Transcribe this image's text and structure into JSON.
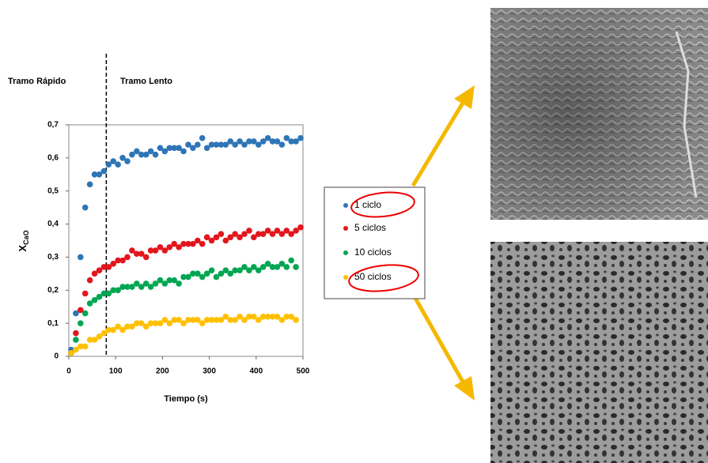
{
  "chart_data": {
    "type": "scatter",
    "annotations": [
      "Tramo Rápido",
      "Tramo Lento"
    ],
    "divider_x": 80,
    "ylabel": "X",
    "ylabel_subscript": "CaO",
    "xlabel": "Tiempo (s)",
    "xlim": [
      0,
      500
    ],
    "xticks": [
      0,
      100,
      200,
      300,
      400,
      500
    ],
    "ylim": [
      0,
      0.7
    ],
    "yticks": [
      0,
      {
        "value": 0.1,
        "label": "0,1"
      },
      {
        "value": 0.2,
        "label": "0,2"
      },
      {
        "value": 0.3,
        "label": "0,3"
      },
      {
        "value": 0.4,
        "label": "0,4"
      },
      {
        "value": 0.5,
        "label": "0,5"
      },
      {
        "value": 0.6,
        "label": "0,6"
      },
      {
        "value": 0.7,
        "label": "0,7"
      }
    ],
    "x": [
      5,
      15,
      25,
      35,
      45,
      55,
      65,
      75,
      85,
      95,
      105,
      115,
      125,
      135,
      145,
      155,
      165,
      175,
      185,
      195,
      205,
      215,
      225,
      235,
      245,
      255,
      265,
      275,
      285,
      295,
      305,
      315,
      325,
      335,
      345,
      355,
      365,
      375,
      385,
      395,
      405,
      415,
      425,
      435,
      445,
      455,
      465,
      475,
      485,
      495
    ],
    "series": [
      {
        "name": "1 ciclo",
        "color": "#2e75b6",
        "values": [
          0.02,
          0.13,
          0.3,
          0.45,
          0.52,
          0.55,
          0.55,
          0.56,
          0.58,
          0.59,
          0.58,
          0.6,
          0.59,
          0.61,
          0.62,
          0.61,
          0.61,
          0.62,
          0.61,
          0.63,
          0.62,
          0.63,
          0.63,
          0.63,
          0.62,
          0.64,
          0.63,
          0.64,
          0.66,
          0.63,
          0.64,
          0.64,
          0.64,
          0.64,
          0.65,
          0.64,
          0.65,
          0.64,
          0.65,
          0.65,
          0.64,
          0.65,
          0.66,
          0.65,
          0.65,
          0.64,
          0.66,
          0.65,
          0.65,
          0.66
        ]
      },
      {
        "name": "5 ciclos",
        "color": "#e3161d",
        "values": [
          0.01,
          0.07,
          0.14,
          0.19,
          0.23,
          0.25,
          0.26,
          0.27,
          0.27,
          0.28,
          0.29,
          0.29,
          0.3,
          0.32,
          0.31,
          0.31,
          0.3,
          0.32,
          0.32,
          0.33,
          0.32,
          0.33,
          0.34,
          0.33,
          0.34,
          0.34,
          0.34,
          0.35,
          0.34,
          0.36,
          0.35,
          0.36,
          0.37,
          0.35,
          0.36,
          0.37,
          0.36,
          0.37,
          0.38,
          0.36,
          0.37,
          0.37,
          0.38,
          0.37,
          0.38,
          0.37,
          0.38,
          0.37,
          0.38,
          0.39
        ]
      },
      {
        "name": "10 ciclos",
        "color": "#00a651",
        "values": [
          0.01,
          0.05,
          0.1,
          0.13,
          0.16,
          0.17,
          0.18,
          0.19,
          0.19,
          0.2,
          0.2,
          0.21,
          0.21,
          0.21,
          0.22,
          0.21,
          0.22,
          0.21,
          0.22,
          0.23,
          0.22,
          0.23,
          0.23,
          0.22,
          0.24,
          0.24,
          0.25,
          0.25,
          0.24,
          0.25,
          0.26,
          0.24,
          0.25,
          0.26,
          0.25,
          0.26,
          0.26,
          0.27,
          0.26,
          0.27,
          0.26,
          0.27,
          0.28,
          0.27,
          0.27,
          0.28,
          0.27,
          0.29,
          0.27,
          null
        ]
      },
      {
        "name": "50 ciclos",
        "color": "#ffc000",
        "values": [
          0.01,
          0.02,
          0.03,
          0.03,
          0.05,
          0.05,
          0.06,
          0.07,
          0.08,
          0.08,
          0.09,
          0.08,
          0.09,
          0.09,
          0.1,
          0.1,
          0.09,
          0.1,
          0.1,
          0.1,
          0.11,
          0.1,
          0.11,
          0.11,
          0.1,
          0.11,
          0.11,
          0.11,
          0.1,
          0.11,
          0.11,
          0.11,
          0.11,
          0.12,
          0.11,
          0.11,
          0.12,
          0.11,
          0.12,
          0.12,
          0.11,
          0.12,
          0.12,
          0.12,
          0.12,
          0.11,
          0.12,
          0.12,
          0.11,
          null
        ]
      }
    ]
  }
}
